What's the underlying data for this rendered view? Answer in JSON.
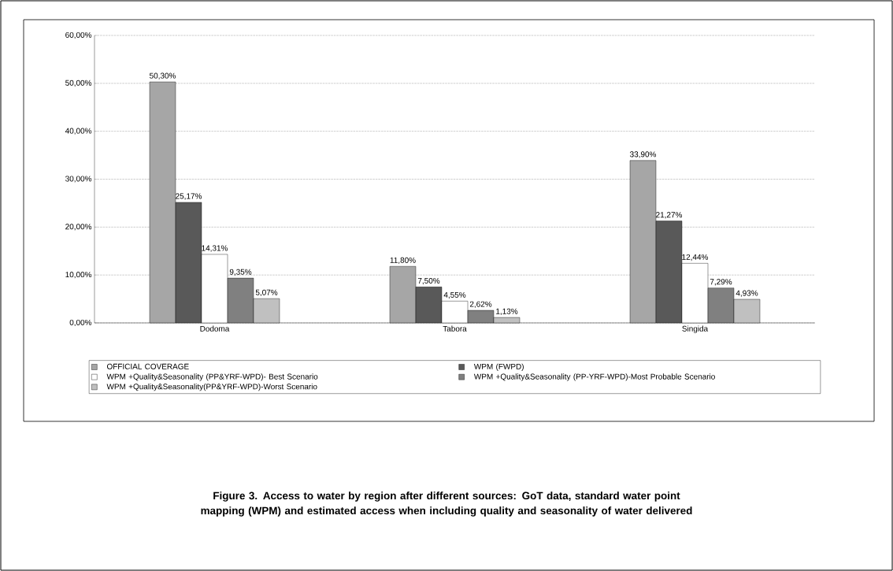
{
  "chart_data": {
    "type": "bar",
    "title": "Figure 3. Access to water by region after different sources: GoT data, standard water point mapping (WPM) and estimated access when including quality and seasonality of water delivered",
    "categories": [
      "Dodoma",
      "Tabora",
      "Singida"
    ],
    "series": [
      {
        "name": "OFFICIAL COVERAGE",
        "color": "#a6a6a6",
        "values": [
          50.3,
          11.8,
          33.9
        ],
        "value_labels": [
          "50,30%",
          "11,80%",
          "33,90%"
        ]
      },
      {
        "name": "WPM (FWPD)",
        "color": "#595959",
        "values": [
          25.17,
          7.5,
          21.27
        ],
        "value_labels": [
          "25,17%",
          "7,50%",
          "21,27%"
        ]
      },
      {
        "name": "WPM +Quality&Seasonality (PP&YRF-WPD)- Best Scenario",
        "color": "#ffffff",
        "values": [
          14.31,
          4.55,
          12.44
        ],
        "value_labels": [
          "14,31%",
          "4,55%",
          "12,44%"
        ]
      },
      {
        "name": "WPM +Quality&Seasonality (PP-YRF-WPD)-Most Probable Scenario",
        "color": "#808080",
        "values": [
          9.35,
          2.62,
          7.29
        ],
        "value_labels": [
          "9,35%",
          "2,62%",
          "7,29%"
        ]
      },
      {
        "name": "WPM +Quality&Seasonality(PP&YRF-WPD)-Worst Scenario",
        "color": "#c0c0c0",
        "values": [
          5.07,
          1.13,
          4.93
        ],
        "value_labels": [
          "5,07%",
          "1,13%",
          "4,93%"
        ]
      }
    ],
    "ylim": [
      0,
      60
    ],
    "yticks": [
      {
        "value": 0,
        "label": "0,00%"
      },
      {
        "value": 10,
        "label": "10,00%"
      },
      {
        "value": 20,
        "label": "20,00%"
      },
      {
        "value": 30,
        "label": "30,00%"
      },
      {
        "value": 40,
        "label": "40,00%"
      },
      {
        "value": 50,
        "label": "50,00%"
      },
      {
        "value": 60,
        "label": "60,00%"
      }
    ],
    "grid": "y",
    "legend": "bottom"
  }
}
